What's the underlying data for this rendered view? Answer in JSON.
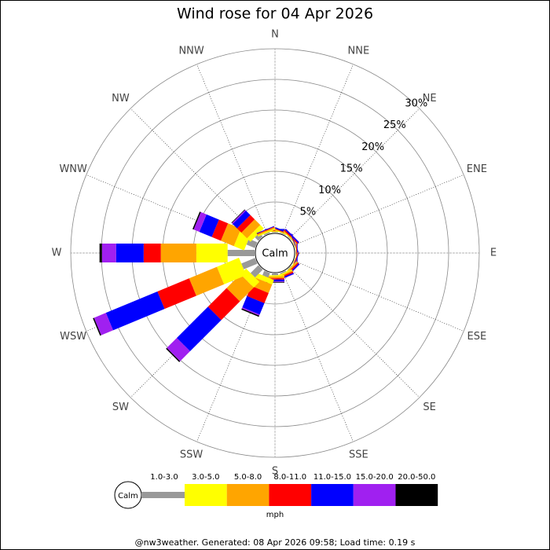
{
  "chart_data": {
    "type": "windrose",
    "title": "Wind rose for 04 Apr 2026",
    "directions": [
      "N",
      "NNE",
      "NE",
      "ENE",
      "E",
      "ESE",
      "SE",
      "SSE",
      "S",
      "SSW",
      "SW",
      "WSW",
      "W",
      "WNW",
      "NW",
      "NNW"
    ],
    "calm_label": "Calm",
    "unit": "mph",
    "footer": "@nw3weather. Generated: 08 Apr 2026 09:58; Load time: 0.19 s",
    "rlim": [
      0,
      30
    ],
    "rticks": [
      {
        "value": 5,
        "label": "5%"
      },
      {
        "value": 10,
        "label": "10%"
      },
      {
        "value": 15,
        "label": "15%"
      },
      {
        "value": 20,
        "label": "20%"
      },
      {
        "value": 25,
        "label": "25%"
      },
      {
        "value": 30,
        "label": "30%"
      }
    ],
    "series": [
      {
        "name": "1.0-3.0",
        "color": "#999999",
        "values": [
          0.1,
          0.1,
          0.1,
          0.05,
          0.05,
          0.05,
          0.1,
          0.2,
          0.3,
          0.8,
          1.8,
          2.4,
          4.4,
          1.5,
          0.8,
          0.2
        ]
      },
      {
        "name": "3.0-5.0",
        "color": "#ffff00",
        "values": [
          0.1,
          0.1,
          0.1,
          0.05,
          0.05,
          0.05,
          0.1,
          0.2,
          0.2,
          0.8,
          1.3,
          3.9,
          5.1,
          1.8,
          0.8,
          0.2
        ]
      },
      {
        "name": "5.0-8.0",
        "color": "#ffa500",
        "values": [
          0.1,
          0.1,
          0.1,
          0.05,
          0.05,
          0.05,
          0.2,
          0.2,
          0.3,
          1.5,
          3.2,
          4.9,
          5.8,
          2.3,
          1.3,
          0.2
        ]
      },
      {
        "name": "8.0-11.0",
        "color": "#ff0000",
        "values": [
          0.1,
          0.1,
          0.2,
          0.05,
          0.1,
          0.1,
          0.2,
          0.2,
          0.2,
          1.8,
          4.3,
          5.6,
          2.8,
          1.6,
          1.0,
          0.1
        ]
      },
      {
        "name": "11.0-15.0",
        "color": "#0000ff",
        "values": [
          0.2,
          0.2,
          0.2,
          0.1,
          0.1,
          0.1,
          0.2,
          0.2,
          0.3,
          2.0,
          7.2,
          9.1,
          4.5,
          2.2,
          1.0,
          0.1
        ]
      },
      {
        "name": "15.0-20.0",
        "color": "#a020f0",
        "values": [
          0,
          0,
          0.05,
          0,
          0,
          0,
          0.05,
          0.05,
          0.1,
          0.2,
          2.3,
          2.1,
          2.3,
          1.0,
          0.2,
          0
        ]
      },
      {
        "name": "20.0-50.0",
        "color": "#000000",
        "values": [
          0,
          0,
          0,
          0,
          0,
          0,
          0,
          0,
          0.1,
          0.2,
          0.2,
          0.2,
          0.4,
          0.2,
          0.1,
          0
        ]
      }
    ]
  }
}
